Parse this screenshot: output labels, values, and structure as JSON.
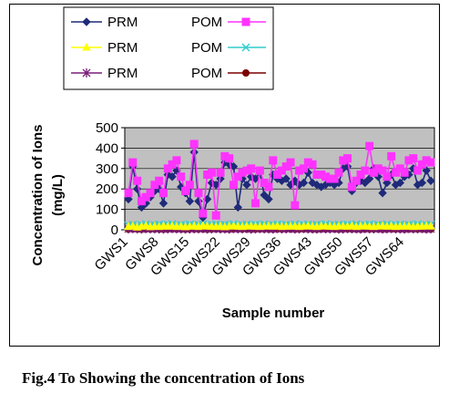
{
  "caption": "Fig.4 To Showing the concentration of Ions",
  "legend": [
    {
      "left_label": "PRM",
      "right_label": "POM"
    },
    {
      "left_label": "PRM",
      "right_label": "POM"
    },
    {
      "left_label": "PRM",
      "right_label": "POM"
    }
  ],
  "colors": {
    "plot_background": "#c0c0c0",
    "prm_1": "#1f2a7a",
    "pom_1": "#ff33ff",
    "prm_2": "#ffff00",
    "pom_2": "#33cccc",
    "prm_3": "#7a1f7a",
    "pom_3": "#7a0000"
  },
  "chart_data": {
    "type": "line",
    "title": "",
    "xlabel": "Sample number",
    "ylabel": "Concentration of Ions (mg/L)",
    "ylim": [
      0,
      500
    ],
    "yticks": [
      0,
      100,
      200,
      300,
      400,
      500
    ],
    "grid": "horizontal",
    "legend_position": "top",
    "x_tick_labels": [
      "GWS1",
      "GWS8",
      "GWS15",
      "GWS22",
      "GWS29",
      "GWS36",
      "GWS43",
      "GWS50",
      "GWS57",
      "GWS64"
    ],
    "x_tick_index": [
      1,
      8,
      15,
      22,
      29,
      36,
      43,
      50,
      57,
      64
    ],
    "n_samples": 70,
    "series": [
      {
        "name": "PRM",
        "marker": "diamond",
        "color_key": "prm_1",
        "values": [
          150,
          310,
          200,
          110,
          130,
          160,
          190,
          200,
          130,
          270,
          260,
          290,
          210,
          180,
          140,
          380,
          140,
          60,
          150,
          230,
          220,
          250,
          330,
          320,
          310,
          110,
          250,
          220,
          260,
          250,
          280,
          170,
          150,
          270,
          250,
          240,
          250,
          220,
          240,
          220,
          230,
          280,
          230,
          220,
          210,
          220,
          230,
          220,
          230,
          300,
          310,
          190,
          230,
          240,
          230,
          250,
          300,
          260,
          180,
          230,
          270,
          220,
          230,
          260,
          270,
          300,
          220,
          230,
          290,
          240
        ]
      },
      {
        "name": "POM",
        "marker": "square",
        "color_key": "pom_1",
        "values": [
          180,
          330,
          240,
          140,
          160,
          180,
          220,
          240,
          180,
          300,
          320,
          340,
          260,
          190,
          220,
          420,
          180,
          80,
          270,
          280,
          70,
          280,
          360,
          350,
          220,
          260,
          280,
          290,
          300,
          130,
          290,
          230,
          210,
          340,
          270,
          290,
          310,
          330,
          120,
          290,
          300,
          330,
          320,
          270,
          270,
          260,
          250,
          250,
          280,
          340,
          350,
          210,
          240,
          270,
          290,
          410,
          280,
          300,
          290,
          260,
          360,
          280,
          300,
          280,
          340,
          350,
          290,
          320,
          340,
          330
        ]
      },
      {
        "name": "PRM",
        "marker": "triangle",
        "color_key": "prm_2",
        "values": [
          15,
          18,
          12,
          16,
          20,
          14,
          17,
          15,
          18,
          16,
          19,
          15,
          17,
          14,
          16,
          18,
          15,
          20,
          17,
          16,
          15,
          18,
          14,
          17,
          19,
          16,
          15,
          18,
          17,
          16,
          15,
          17,
          18,
          16,
          19,
          15,
          17,
          16,
          18,
          15,
          17,
          19,
          16,
          15,
          18,
          17,
          16,
          15,
          18,
          17,
          16,
          19,
          15,
          17,
          18,
          16,
          15,
          17,
          19,
          16,
          18,
          15,
          17,
          16,
          18,
          15,
          17,
          16,
          19,
          17
        ]
      },
      {
        "name": "POM",
        "marker": "x",
        "color_key": "pom_2",
        "values": [
          22,
          25,
          20,
          24,
          27,
          21,
          23,
          26,
          22,
          25,
          28,
          21,
          24,
          23,
          26,
          22,
          25,
          27,
          21,
          24,
          26,
          22,
          25,
          23,
          27,
          21,
          24,
          26,
          22,
          25,
          23,
          27,
          21,
          24,
          26,
          22,
          25,
          23,
          27,
          21,
          24,
          26,
          22,
          25,
          23,
          27,
          21,
          24,
          26,
          22,
          25,
          23,
          27,
          21,
          24,
          26,
          22,
          25,
          23,
          27,
          21,
          24,
          26,
          22,
          25,
          23,
          27,
          21,
          24,
          26
        ]
      },
      {
        "name": "PRM",
        "marker": "asterisk",
        "color_key": "prm_3",
        "values": [
          5,
          6,
          5,
          4,
          6,
          5,
          5,
          6,
          4,
          5,
          6,
          5,
          5,
          4,
          6,
          5,
          5,
          6,
          4,
          5,
          6,
          5,
          5,
          4,
          6,
          5,
          5,
          6,
          4,
          5,
          6,
          5,
          5,
          4,
          6,
          5,
          5,
          6,
          4,
          5,
          6,
          5,
          5,
          4,
          6,
          5,
          5,
          6,
          4,
          5,
          6,
          5,
          5,
          4,
          6,
          5,
          5,
          6,
          4,
          5,
          6,
          5,
          5,
          4,
          6,
          5,
          5,
          6,
          4,
          5
        ]
      },
      {
        "name": "POM",
        "marker": "circle",
        "color_key": "pom_3",
        "values": [
          3,
          4,
          3,
          2,
          4,
          3,
          3,
          4,
          2,
          3,
          4,
          3,
          3,
          2,
          4,
          3,
          3,
          4,
          2,
          3,
          4,
          3,
          3,
          2,
          4,
          3,
          3,
          4,
          2,
          3,
          4,
          3,
          3,
          2,
          4,
          3,
          3,
          4,
          2,
          3,
          4,
          3,
          3,
          2,
          4,
          3,
          3,
          4,
          2,
          3,
          4,
          3,
          3,
          2,
          4,
          3,
          3,
          4,
          2,
          3,
          4,
          3,
          3,
          2,
          4,
          3,
          3,
          4,
          2,
          3
        ]
      }
    ]
  }
}
